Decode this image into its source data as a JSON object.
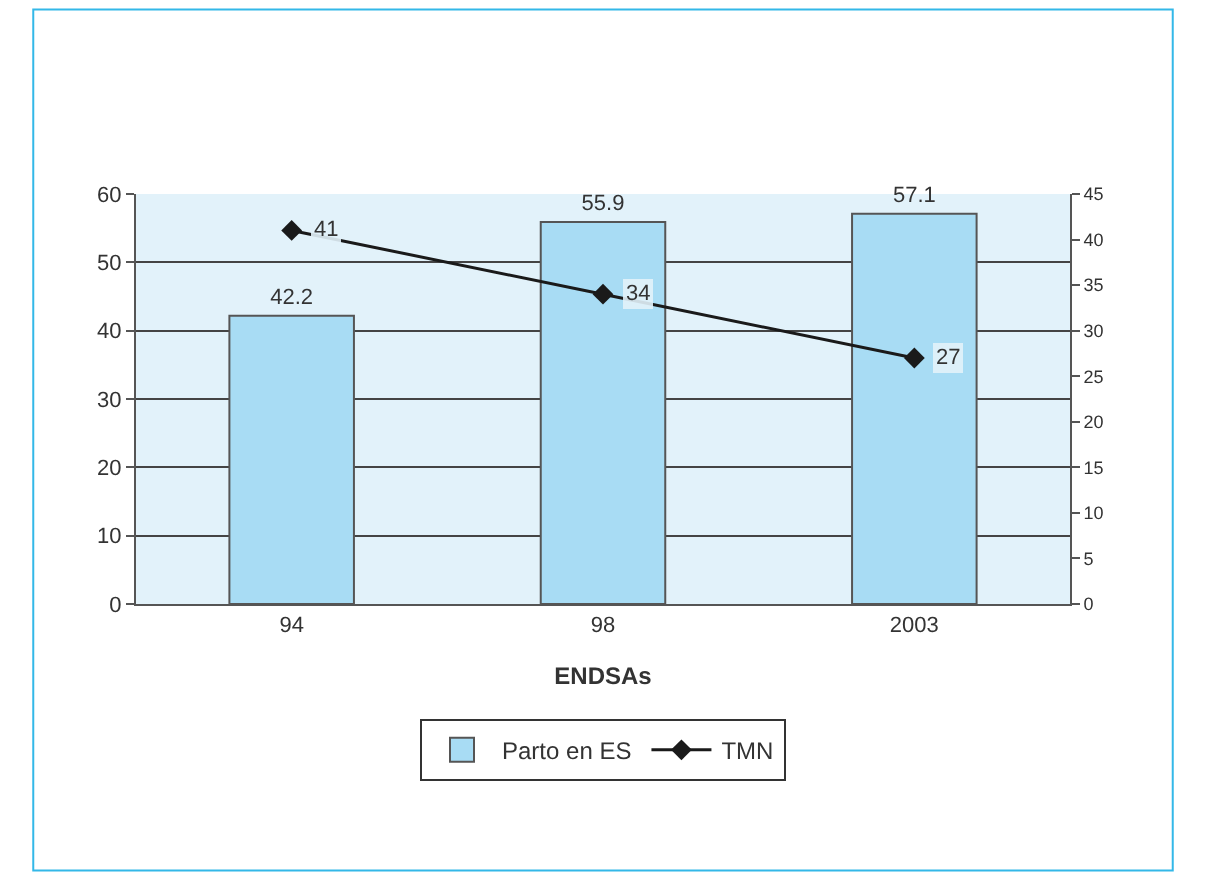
{
  "chart_data": {
    "type": "bar",
    "categories": [
      "94",
      "98",
      "2003"
    ],
    "xlabel": "ENDSAs",
    "series": [
      {
        "name": "Parto en ES",
        "color": "#a8dcf4",
        "values": [
          42.2,
          55.9,
          57.1
        ]
      },
      {
        "name": "TMN",
        "type": "line",
        "axis": "y2",
        "color": "#1a1a1a",
        "values": [
          41,
          34,
          27
        ]
      }
    ],
    "ylim": [
      0,
      60
    ],
    "yticks": [
      0,
      10,
      20,
      30,
      40,
      50,
      60
    ],
    "y2lim": [
      0,
      45
    ],
    "y2ticks": [
      0,
      5,
      10,
      15,
      20,
      25,
      30,
      35,
      40,
      45
    ],
    "data_labels": true,
    "grid": "y",
    "legend": "bottom",
    "marker": "diamond",
    "line_style": "solid"
  }
}
